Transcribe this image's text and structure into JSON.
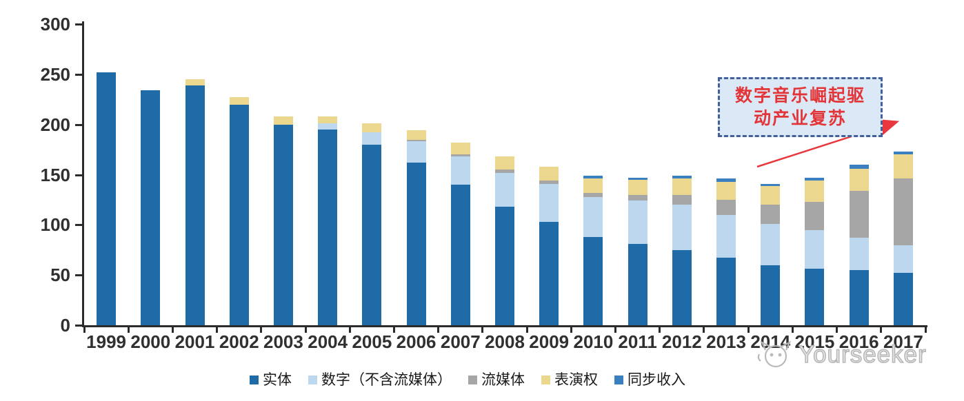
{
  "watermark": {
    "brand": "Yourseeker",
    "logo": "cat-logo-icon"
  },
  "annotation": {
    "lines": [
      "数字音乐崛起驱",
      "动产业复苏"
    ],
    "box_fill": "#dbe8f6",
    "box_border": "#44609a",
    "text_color": "#e33438",
    "arrow_color": "#e8373d"
  },
  "chart_data": {
    "type": "bar",
    "stacked": true,
    "title": "",
    "xlabel": "",
    "ylabel": "",
    "categories": [
      "1999",
      "2000",
      "2001",
      "2002",
      "2003",
      "2004",
      "2005",
      "2006",
      "2007",
      "2008",
      "2009",
      "2010",
      "2011",
      "2012",
      "2013",
      "2014",
      "2015",
      "2016",
      "2017"
    ],
    "series": [
      {
        "name": "实体",
        "color": "#1e6ba7",
        "values": [
          252,
          234,
          239,
          220,
          200,
          195,
          180,
          162,
          140,
          118,
          103,
          88,
          81,
          75,
          67,
          60,
          56,
          55,
          52
        ]
      },
      {
        "name": "数字（不含流媒体）",
        "color": "#bdd7ee",
        "values": [
          0,
          0,
          0,
          0,
          0,
          6,
          12,
          21,
          28,
          34,
          38,
          40,
          43,
          45,
          43,
          41,
          39,
          32,
          28
        ]
      },
      {
        "name": "流媒体",
        "color": "#a6a6a6",
        "values": [
          0,
          0,
          0,
          0,
          0,
          0,
          0,
          2,
          2,
          3,
          3,
          4,
          6,
          10,
          15,
          19,
          28,
          47,
          66
        ]
      },
      {
        "name": "表演权",
        "color": "#ebd78d",
        "values": [
          0,
          0,
          6,
          7,
          8,
          7,
          9,
          9,
          12,
          13,
          14,
          14,
          15,
          16,
          18,
          19,
          21,
          22,
          24
        ]
      },
      {
        "name": "同步收入",
        "color": "#3a80c1",
        "values": [
          0,
          0,
          0,
          0,
          0,
          0,
          0,
          0,
          0,
          0,
          0,
          3,
          2,
          3,
          3,
          2,
          3,
          4,
          3
        ]
      }
    ],
    "ylim": [
      0,
      300
    ],
    "yticks": [
      0,
      50,
      100,
      150,
      200,
      250,
      300
    ],
    "grid": false,
    "legend_position": "bottom",
    "axis_color": "#2b2b2b"
  }
}
